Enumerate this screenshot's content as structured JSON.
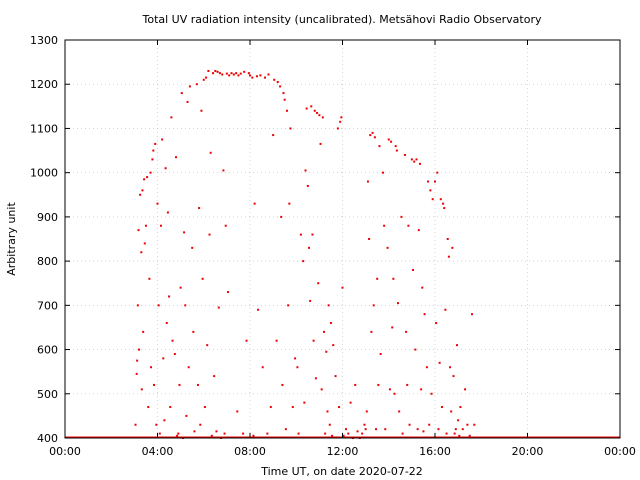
{
  "chart_data": {
    "type": "scatter",
    "title": "Total UV radiation intensity (uncalibrated). Metsähovi Radio Observatory",
    "xlabel": "Time UT, on date 2020-07-22",
    "ylabel": "Arbitrary unit",
    "xlim": [
      0,
      24
    ],
    "ylim": [
      400,
      1300
    ],
    "x_ticks": [
      0,
      4,
      8,
      12,
      16,
      20,
      24
    ],
    "x_tick_labels": [
      "00:00",
      "04:00",
      "08:00",
      "12:00",
      "16:00",
      "20:00",
      "00:00"
    ],
    "y_ticks": [
      400,
      500,
      600,
      700,
      800,
      900,
      1000,
      1100,
      1200,
      1300
    ],
    "y_tick_labels": [
      "400",
      "500",
      "600",
      "700",
      "800",
      "900",
      "1000",
      "1100",
      "1200",
      "1300"
    ],
    "grid": true,
    "grid_style": "dotted",
    "marker_color": "#ee0000",
    "series": [
      {
        "name": "",
        "baseline": {
          "x": [
            0,
            24
          ],
          "y": 400
        },
        "points": [
          [
            3.05,
            430
          ],
          [
            3.1,
            545
          ],
          [
            3.12,
            575
          ],
          [
            3.15,
            700
          ],
          [
            3.18,
            870
          ],
          [
            3.2,
            600
          ],
          [
            3.25,
            950
          ],
          [
            3.3,
            820
          ],
          [
            3.32,
            510
          ],
          [
            3.35,
            960
          ],
          [
            3.38,
            640
          ],
          [
            3.42,
            985
          ],
          [
            3.45,
            840
          ],
          [
            3.5,
            880
          ],
          [
            3.55,
            990
          ],
          [
            3.6,
            470
          ],
          [
            3.65,
            760
          ],
          [
            3.7,
            1000
          ],
          [
            3.72,
            560
          ],
          [
            3.78,
            1030
          ],
          [
            3.82,
            1050
          ],
          [
            3.85,
            520
          ],
          [
            3.9,
            1065
          ],
          [
            3.95,
            430
          ],
          [
            4.0,
            930
          ],
          [
            4.05,
            700
          ],
          [
            4.1,
            410
          ],
          [
            4.15,
            880
          ],
          [
            4.2,
            1075
          ],
          [
            4.25,
            580
          ],
          [
            4.3,
            440
          ],
          [
            4.35,
            1010
          ],
          [
            4.4,
            660
          ],
          [
            4.45,
            910
          ],
          [
            4.5,
            720
          ],
          [
            4.55,
            470
          ],
          [
            4.6,
            1125
          ],
          [
            4.65,
            620
          ],
          [
            4.75,
            590
          ],
          [
            4.8,
            1035
          ],
          [
            4.85,
            405
          ],
          [
            4.9,
            410
          ],
          [
            4.95,
            520
          ],
          [
            5.0,
            740
          ],
          [
            5.05,
            1180
          ],
          [
            5.1,
            400
          ],
          [
            5.15,
            865
          ],
          [
            5.2,
            700
          ],
          [
            5.25,
            450
          ],
          [
            5.3,
            1160
          ],
          [
            5.35,
            560
          ],
          [
            5.4,
            1195
          ],
          [
            5.5,
            830
          ],
          [
            5.55,
            640
          ],
          [
            5.6,
            415
          ],
          [
            5.7,
            1200
          ],
          [
            5.75,
            520
          ],
          [
            5.8,
            920
          ],
          [
            5.85,
            430
          ],
          [
            5.9,
            1140
          ],
          [
            5.95,
            760
          ],
          [
            6.0,
            1210
          ],
          [
            6.05,
            470
          ],
          [
            6.1,
            1215
          ],
          [
            6.15,
            610
          ],
          [
            6.2,
            1230
          ],
          [
            6.25,
            860
          ],
          [
            6.3,
            1045
          ],
          [
            6.35,
            405
          ],
          [
            6.4,
            1225
          ],
          [
            6.45,
            540
          ],
          [
            6.5,
            1230
          ],
          [
            6.55,
            415
          ],
          [
            6.6,
            1228
          ],
          [
            6.65,
            695
          ],
          [
            6.7,
            1225
          ],
          [
            6.75,
            400
          ],
          [
            6.8,
            1222
          ],
          [
            6.85,
            1005
          ],
          [
            6.9,
            410
          ],
          [
            6.95,
            880
          ],
          [
            7.0,
            1224
          ],
          [
            7.05,
            730
          ],
          [
            7.1,
            1220
          ],
          [
            7.2,
            1225
          ],
          [
            7.3,
            1222
          ],
          [
            7.4,
            1225
          ],
          [
            7.45,
            460
          ],
          [
            7.5,
            1220
          ],
          [
            7.6,
            1224
          ],
          [
            7.7,
            410
          ],
          [
            7.75,
            1228
          ],
          [
            7.85,
            620
          ],
          [
            7.95,
            1225
          ],
          [
            8.0,
            1220
          ],
          [
            8.1,
            1215
          ],
          [
            8.15,
            405
          ],
          [
            8.2,
            930
          ],
          [
            8.3,
            1218
          ],
          [
            8.35,
            690
          ],
          [
            8.45,
            1220
          ],
          [
            8.55,
            560
          ],
          [
            8.65,
            1215
          ],
          [
            8.75,
            410
          ],
          [
            8.8,
            1222
          ],
          [
            8.9,
            470
          ],
          [
            9.0,
            1085
          ],
          [
            9.05,
            1210
          ],
          [
            9.15,
            620
          ],
          [
            9.2,
            1205
          ],
          [
            9.3,
            1195
          ],
          [
            9.35,
            900
          ],
          [
            9.4,
            520
          ],
          [
            9.45,
            1180
          ],
          [
            9.5,
            1165
          ],
          [
            9.55,
            420
          ],
          [
            9.6,
            1140
          ],
          [
            9.65,
            700
          ],
          [
            9.7,
            930
          ],
          [
            9.75,
            1100
          ],
          [
            9.85,
            470
          ],
          [
            9.95,
            580
          ],
          [
            10.05,
            560
          ],
          [
            10.1,
            410
          ],
          [
            10.2,
            860
          ],
          [
            10.3,
            800
          ],
          [
            10.35,
            480
          ],
          [
            10.4,
            1005
          ],
          [
            10.45,
            1145
          ],
          [
            10.5,
            970
          ],
          [
            10.55,
            830
          ],
          [
            10.6,
            710
          ],
          [
            10.65,
            1150
          ],
          [
            10.7,
            860
          ],
          [
            10.75,
            620
          ],
          [
            10.8,
            1140
          ],
          [
            10.85,
            535
          ],
          [
            10.9,
            1135
          ],
          [
            10.95,
            750
          ],
          [
            11.0,
            1130
          ],
          [
            11.05,
            1065
          ],
          [
            11.1,
            510
          ],
          [
            11.15,
            1125
          ],
          [
            11.2,
            640
          ],
          [
            11.25,
            410
          ],
          [
            11.3,
            595
          ],
          [
            11.35,
            460
          ],
          [
            11.4,
            700
          ],
          [
            11.45,
            430
          ],
          [
            11.5,
            660
          ],
          [
            11.55,
            405
          ],
          [
            11.6,
            610
          ],
          [
            11.7,
            540
          ],
          [
            11.8,
            1100
          ],
          [
            11.85,
            470
          ],
          [
            11.9,
            1115
          ],
          [
            11.95,
            1125
          ],
          [
            12.0,
            740
          ],
          [
            12.05,
            405
          ],
          [
            12.15,
            420
          ],
          [
            12.25,
            410
          ],
          [
            12.35,
            480
          ],
          [
            12.45,
            400
          ],
          [
            12.55,
            520
          ],
          [
            12.65,
            415
          ],
          [
            12.75,
            400
          ],
          [
            12.85,
            410
          ],
          [
            12.95,
            430
          ],
          [
            13.0,
            420
          ],
          [
            13.05,
            460
          ],
          [
            13.1,
            980
          ],
          [
            13.15,
            850
          ],
          [
            13.2,
            1085
          ],
          [
            13.25,
            640
          ],
          [
            13.3,
            1090
          ],
          [
            13.35,
            700
          ],
          [
            13.4,
            1080
          ],
          [
            13.45,
            420
          ],
          [
            13.5,
            760
          ],
          [
            13.55,
            520
          ],
          [
            13.6,
            1060
          ],
          [
            13.65,
            590
          ],
          [
            13.75,
            1000
          ],
          [
            13.8,
            880
          ],
          [
            13.85,
            420
          ],
          [
            13.95,
            830
          ],
          [
            14.0,
            1075
          ],
          [
            14.05,
            510
          ],
          [
            14.1,
            1070
          ],
          [
            14.15,
            650
          ],
          [
            14.2,
            760
          ],
          [
            14.25,
            500
          ],
          [
            14.3,
            1060
          ],
          [
            14.35,
            1050
          ],
          [
            14.4,
            705
          ],
          [
            14.45,
            460
          ],
          [
            14.55,
            900
          ],
          [
            14.6,
            410
          ],
          [
            14.7,
            1040
          ],
          [
            14.75,
            640
          ],
          [
            14.8,
            520
          ],
          [
            14.85,
            880
          ],
          [
            14.9,
            430
          ],
          [
            15.0,
            1030
          ],
          [
            15.05,
            780
          ],
          [
            15.1,
            1025
          ],
          [
            15.15,
            600
          ],
          [
            15.2,
            1030
          ],
          [
            15.25,
            420
          ],
          [
            15.3,
            870
          ],
          [
            15.35,
            1020
          ],
          [
            15.4,
            510
          ],
          [
            15.45,
            740
          ],
          [
            15.5,
            415
          ],
          [
            15.55,
            680
          ],
          [
            15.65,
            560
          ],
          [
            15.7,
            980
          ],
          [
            15.75,
            430
          ],
          [
            15.8,
            960
          ],
          [
            15.85,
            500
          ],
          [
            15.9,
            940
          ],
          [
            16.0,
            980
          ],
          [
            16.05,
            660
          ],
          [
            16.1,
            1000
          ],
          [
            16.15,
            420
          ],
          [
            16.2,
            570
          ],
          [
            16.25,
            940
          ],
          [
            16.3,
            470
          ],
          [
            16.35,
            930
          ],
          [
            16.4,
            920
          ],
          [
            16.45,
            690
          ],
          [
            16.5,
            410
          ],
          [
            16.55,
            850
          ],
          [
            16.6,
            810
          ],
          [
            16.65,
            560
          ],
          [
            16.7,
            460
          ],
          [
            16.75,
            830
          ],
          [
            16.8,
            540
          ],
          [
            16.85,
            410
          ],
          [
            16.9,
            420
          ],
          [
            16.95,
            610
          ],
          [
            17.0,
            440
          ],
          [
            17.05,
            405
          ],
          [
            17.1,
            470
          ],
          [
            17.2,
            420
          ],
          [
            17.3,
            510
          ],
          [
            17.4,
            430
          ],
          [
            17.5,
            405
          ],
          [
            17.6,
            680
          ],
          [
            17.7,
            430
          ]
        ]
      }
    ]
  }
}
